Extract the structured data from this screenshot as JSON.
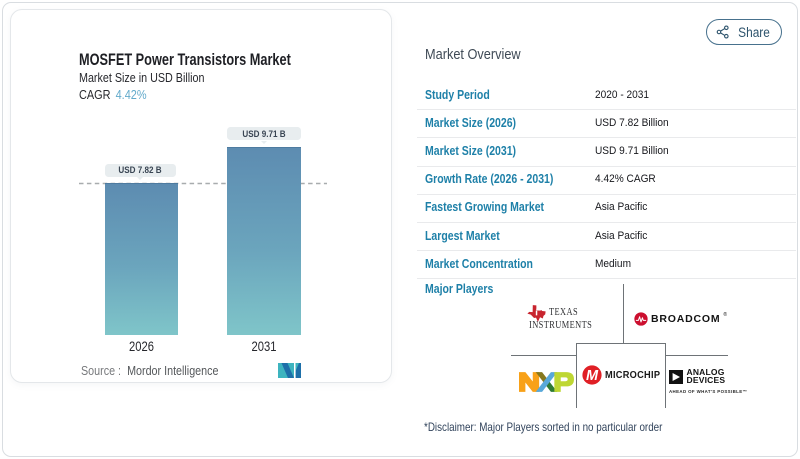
{
  "colors": {
    "accent_teal": "#1e80a8",
    "cagr_blue": "#62aacb",
    "bar_gradient_top": "#5d8cb1",
    "bar_gradient_bottom": "#7fc5c9",
    "text_dark": "#16171c",
    "card_border": "#e4e7ea"
  },
  "share": {
    "label": "Share",
    "icon": "share-nodes-icon"
  },
  "chart": {
    "title": "MOSFET Power Transistors Market",
    "subtitle": "Market Size in USD Billion",
    "cagr_label": "CAGR",
    "cagr_value": "4.42%",
    "source_label": "Source :",
    "source_value": "Mordor Intelligence",
    "bars": [
      {
        "year": "2026",
        "label": "USD 7.82 B"
      },
      {
        "year": "2031",
        "label": "USD 9.71 B"
      }
    ]
  },
  "chart_data": {
    "type": "bar",
    "categories": [
      "2026",
      "2031"
    ],
    "values": [
      7.82,
      9.71
    ],
    "title": "MOSFET Power Transistors Market",
    "subtitle": "Market Size in USD Billion",
    "xlabel": "",
    "ylabel": "Market Size in USD Billion",
    "ylim": [
      0,
      9.71
    ],
    "data_labels": [
      "USD 7.82 B",
      "USD 9.71 B"
    ],
    "annotations": [
      "dashed reference line at first bar value (7.82)"
    ],
    "legend": "none",
    "grid": "off"
  },
  "overview": {
    "title": "Market Overview",
    "rows": [
      {
        "label": "Study Period",
        "value": "2020 - 2031"
      },
      {
        "label": "Market Size (2026)",
        "value": "USD 7.82 Billion"
      },
      {
        "label": "Market Size (2031)",
        "value": "USD 9.71 Billion"
      },
      {
        "label": "Growth Rate (2026 - 2031)",
        "value": "4.42% CAGR"
      },
      {
        "label": "Fastest Growing Market",
        "value": "Asia Pacific"
      },
      {
        "label": "Largest Market",
        "value": "Asia Pacific"
      },
      {
        "label": "Market Concentration",
        "value": "Medium"
      }
    ],
    "major_players_label": "Major Players",
    "players": [
      "Texas Instruments",
      "Broadcom",
      "NXP Semiconductors",
      "Microchip Technology",
      "Analog Devices"
    ],
    "disclaimer": "*Disclaimer: Major Players sorted in no particular order"
  },
  "logos": {
    "ti_line1": "TEXAS",
    "ti_line2": "INSTRUMENTS",
    "broadcom": "BROADCOM",
    "broadcom_reg": "®",
    "microchip": "MICROCHIP",
    "analog_line1": "ANALOG",
    "analog_line2": "DEVICES",
    "analog_tagline": "AHEAD OF WHAT'S POSSIBLE™"
  }
}
